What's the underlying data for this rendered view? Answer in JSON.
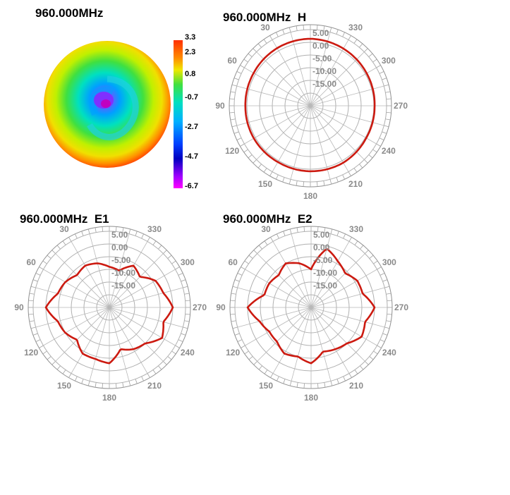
{
  "heatmap_panel": {
    "title": "960.000MHz",
    "colorbar_ticks": [
      "3.3",
      "2.3",
      "0.8",
      "-0.7",
      "-2.7",
      "-4.7",
      "-6.7"
    ]
  },
  "chart_data": [
    {
      "type": "heatmap",
      "title": "960.000MHz",
      "colorbar_values": [
        3.3,
        2.3,
        0.8,
        -0.7,
        -2.7,
        -4.7,
        -6.7
      ],
      "colors": {
        "max": "#ff2000",
        "mid": "#40e040",
        "min": "#ff00ff"
      }
    },
    {
      "type": "polar",
      "title": "960.000MHz  H",
      "radial_ticks": [
        "5.00",
        "0.00",
        "-5.00",
        "-10.00",
        "-15.00"
      ],
      "angle_ticks": [
        "30",
        "330",
        "60",
        "300",
        "90",
        "270",
        "120",
        "240",
        "150",
        "210",
        "180"
      ],
      "rlim": [
        -25,
        5
      ],
      "series_color": "#cc1a10",
      "angles": [
        0,
        30,
        60,
        90,
        120,
        150,
        180,
        210,
        240,
        270,
        300,
        330,
        360
      ],
      "values": [
        1.4,
        1.2,
        0.8,
        0.6,
        0.7,
        0.6,
        0.8,
        0.9,
        0.4,
        0.3,
        0.6,
        1.0,
        1.4
      ]
    },
    {
      "type": "polar",
      "title": "960.000MHz  E1",
      "radial_ticks": [
        "5.00",
        "0.00",
        "-5.00",
        "-10.00",
        "-15.00"
      ],
      "angle_ticks": [
        "30",
        "330",
        "60",
        "300",
        "90",
        "270",
        "120",
        "240",
        "150",
        "210",
        "180"
      ],
      "rlim": [
        -25,
        5
      ],
      "series_color": "#cc1a10",
      "angles": [
        0,
        15,
        30,
        45,
        60,
        75,
        90,
        105,
        120,
        135,
        150,
        165,
        180,
        195,
        210,
        225,
        240,
        255,
        270,
        285,
        300,
        315,
        330,
        345,
        360
      ],
      "values": [
        -9,
        -7,
        -6,
        -7,
        -5,
        -4,
        0,
        -4,
        -5,
        -7,
        -4,
        -4,
        -3,
        -8,
        -6,
        -5,
        -1,
        -3,
        0,
        -3,
        -4,
        -8,
        -6,
        -10,
        -9
      ]
    },
    {
      "type": "polar",
      "title": "960.000MHz  E2",
      "radial_ticks": [
        "5.00",
        "0.00",
        "-5.00",
        "-10.00",
        "-15.00"
      ],
      "angle_ticks": [
        "30",
        "330",
        "60",
        "300",
        "90",
        "270",
        "120",
        "240",
        "150",
        "210",
        "180"
      ],
      "rlim": [
        -25,
        5
      ],
      "series_color": "#cc1a10",
      "angles": [
        0,
        15,
        30,
        45,
        60,
        75,
        90,
        105,
        120,
        135,
        150,
        165,
        180,
        195,
        210,
        225,
        240,
        255,
        270,
        285,
        300,
        315,
        330,
        345,
        360
      ],
      "values": [
        -10,
        -7,
        -5,
        -7,
        -6,
        -6,
        0,
        -4,
        -6,
        -6,
        -4,
        -5,
        -3,
        -7,
        -6,
        -5,
        -2,
        -3,
        0,
        -4,
        -4,
        -6,
        -4,
        -1,
        -10
      ]
    }
  ]
}
